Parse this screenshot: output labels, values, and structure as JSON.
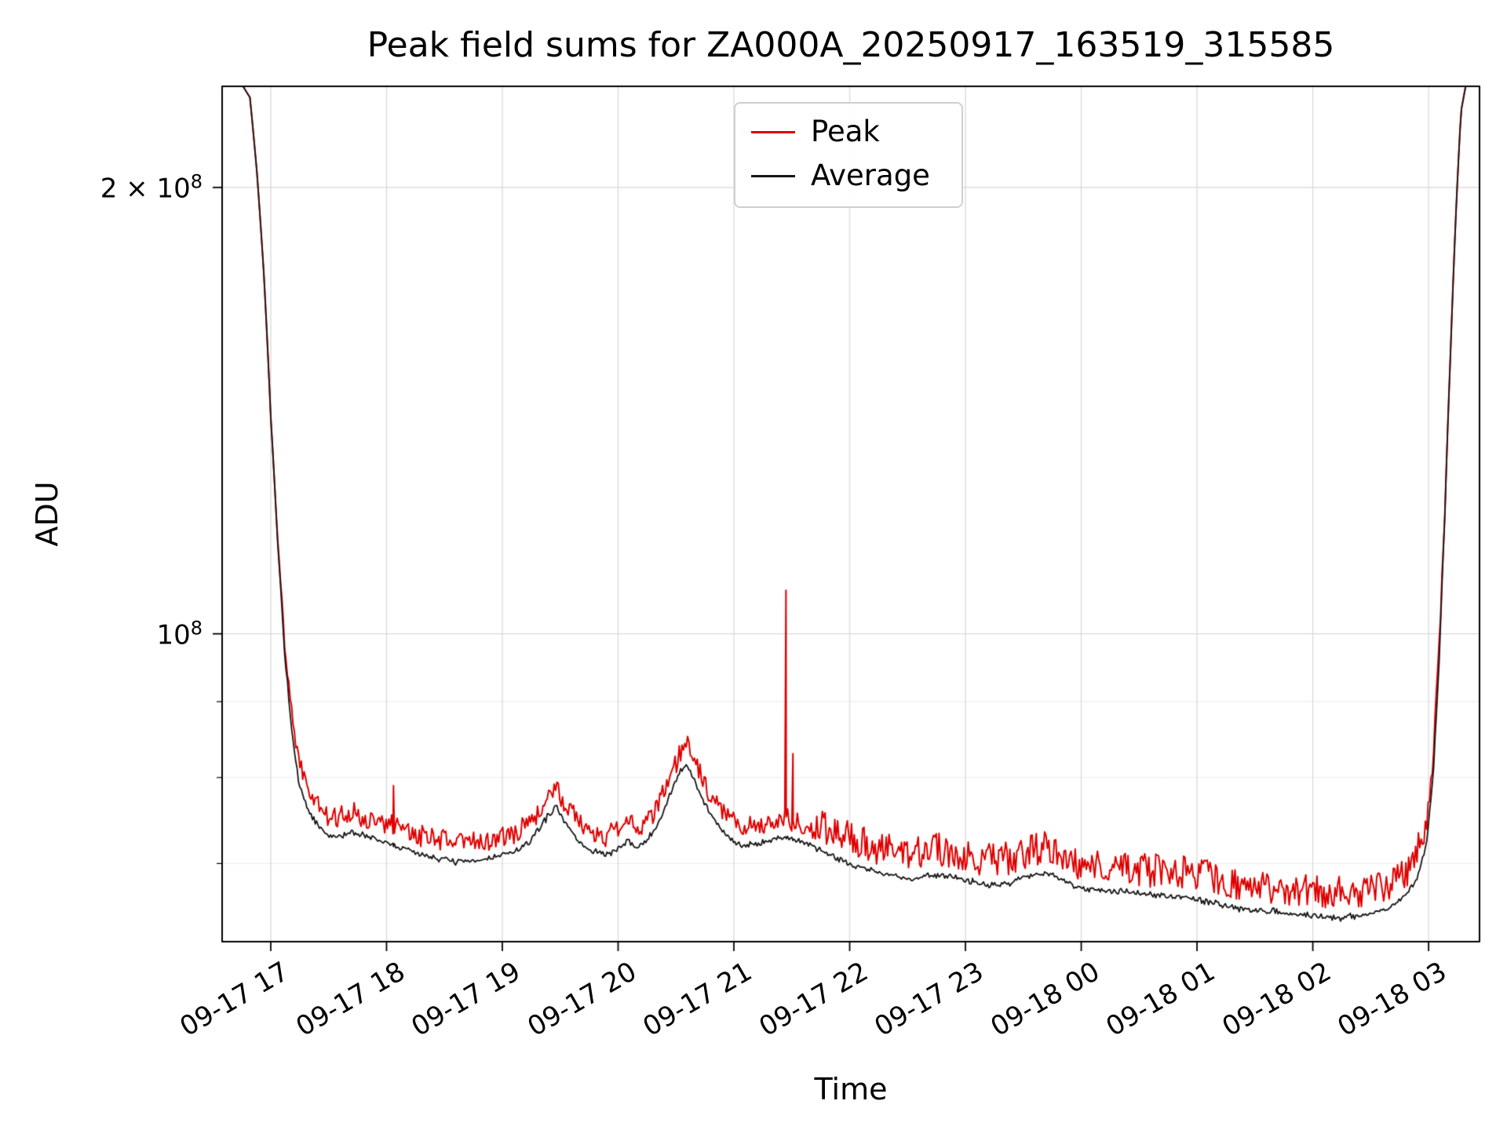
{
  "chart_data": {
    "type": "line",
    "title": "Peak field sums for ZA000A_20250917_163519_315585",
    "xlabel": "Time",
    "ylabel": "ADU",
    "yscale": "log",
    "grid": true,
    "legend_position": "upper center",
    "xlim": [
      16.58,
      27.44
    ],
    "ylim": [
      62000000,
      234000000
    ],
    "x_unit": "hours since 2025-09-17 00:00 (25=01:00 on 09-18)",
    "x_ticks": [
      {
        "value": 17,
        "label": "09-17 17"
      },
      {
        "value": 18,
        "label": "09-17 18"
      },
      {
        "value": 19,
        "label": "09-17 19"
      },
      {
        "value": 20,
        "label": "09-17 20"
      },
      {
        "value": 21,
        "label": "09-17 21"
      },
      {
        "value": 22,
        "label": "09-17 22"
      },
      {
        "value": 23,
        "label": "09-17 23"
      },
      {
        "value": 24,
        "label": "09-18 00"
      },
      {
        "value": 25,
        "label": "09-18 01"
      },
      {
        "value": 26,
        "label": "09-18 02"
      },
      {
        "value": 27,
        "label": "09-18 03"
      }
    ],
    "y_ticks": [
      {
        "value": 200000000,
        "mantissa": "2 × 10",
        "exp": "8"
      },
      {
        "value": 100000000,
        "mantissa": "10",
        "exp": "8"
      }
    ],
    "y_minor_gridlines": [
      70000000,
      80000000,
      90000000
    ],
    "series": [
      {
        "name": "Peak",
        "color": "#e00000",
        "line_width": 2,
        "derived_from": "Average",
        "rule": {
          "base_offset": 0.012,
          "noise_amp": 0.035,
          "noise_amp_late": 0.055,
          "late_range": [
            21.7,
            26.95
          ]
        },
        "spikes": [
          [
            18.06,
            79000000
          ],
          [
            21.45,
            107000000
          ],
          [
            21.51,
            83000000
          ],
          [
            23.06,
            71000000
          ],
          [
            25.33,
            69000000
          ]
        ]
      },
      {
        "name": "Average",
        "color": "#151515",
        "line_width": 1.8,
        "noise_amp": 0.006,
        "points": [
          [
            16.58,
            234000000
          ],
          [
            16.76,
            234000000
          ],
          [
            16.82,
            230000000
          ],
          [
            16.88,
            205000000
          ],
          [
            16.94,
            175000000
          ],
          [
            17.0,
            140000000
          ],
          [
            17.06,
            115000000
          ],
          [
            17.12,
            97000000
          ],
          [
            17.18,
            86000000
          ],
          [
            17.24,
            79500000
          ],
          [
            17.32,
            76000000
          ],
          [
            17.42,
            74000000
          ],
          [
            17.52,
            72800000
          ],
          [
            17.62,
            73200000
          ],
          [
            17.72,
            73500000
          ],
          [
            17.82,
            73000000
          ],
          [
            17.92,
            72600000
          ],
          [
            18.02,
            72200000
          ],
          [
            18.15,
            71600000
          ],
          [
            18.3,
            71000000
          ],
          [
            18.45,
            70600000
          ],
          [
            18.6,
            70200000
          ],
          [
            18.75,
            70200000
          ],
          [
            18.9,
            70600000
          ],
          [
            19.0,
            71000000
          ],
          [
            19.1,
            71200000
          ],
          [
            19.2,
            72000000
          ],
          [
            19.3,
            73500000
          ],
          [
            19.4,
            75500000
          ],
          [
            19.47,
            76500000
          ],
          [
            19.55,
            74500000
          ],
          [
            19.65,
            72500000
          ],
          [
            19.75,
            71500000
          ],
          [
            19.9,
            71000000
          ],
          [
            20.0,
            71500000
          ],
          [
            20.08,
            72500000
          ],
          [
            20.16,
            71800000
          ],
          [
            20.25,
            72500000
          ],
          [
            20.35,
            74500000
          ],
          [
            20.45,
            78000000
          ],
          [
            20.55,
            81000000
          ],
          [
            20.6,
            81500000
          ],
          [
            20.68,
            79000000
          ],
          [
            20.78,
            76000000
          ],
          [
            20.88,
            74000000
          ],
          [
            20.98,
            72500000
          ],
          [
            21.1,
            72000000
          ],
          [
            21.3,
            72500000
          ],
          [
            21.45,
            73000000
          ],
          [
            21.6,
            72200000
          ],
          [
            21.75,
            71500000
          ],
          [
            21.9,
            70500000
          ],
          [
            22.05,
            69800000
          ],
          [
            22.2,
            69200000
          ],
          [
            22.35,
            68800000
          ],
          [
            22.5,
            68300000
          ],
          [
            22.65,
            68600000
          ],
          [
            22.8,
            68800000
          ],
          [
            22.95,
            68400000
          ],
          [
            23.1,
            68000000
          ],
          [
            23.25,
            67600000
          ],
          [
            23.4,
            68000000
          ],
          [
            23.55,
            68800000
          ],
          [
            23.7,
            69000000
          ],
          [
            23.82,
            68400000
          ],
          [
            23.95,
            67600000
          ],
          [
            24.1,
            67200000
          ],
          [
            24.25,
            67000000
          ],
          [
            24.4,
            67000000
          ],
          [
            24.55,
            66700000
          ],
          [
            24.7,
            66600000
          ],
          [
            24.85,
            66500000
          ],
          [
            25.0,
            66200000
          ],
          [
            25.15,
            65800000
          ],
          [
            25.3,
            65400000
          ],
          [
            25.45,
            65200000
          ],
          [
            25.6,
            65100000
          ],
          [
            25.75,
            64800000
          ],
          [
            25.9,
            64700000
          ],
          [
            26.05,
            64500000
          ],
          [
            26.2,
            64300000
          ],
          [
            26.35,
            64500000
          ],
          [
            26.5,
            64800000
          ],
          [
            26.62,
            65200000
          ],
          [
            26.72,
            65800000
          ],
          [
            26.82,
            66800000
          ],
          [
            26.9,
            68500000
          ],
          [
            26.98,
            72000000
          ],
          [
            27.04,
            80000000
          ],
          [
            27.09,
            95000000
          ],
          [
            27.14,
            120000000
          ],
          [
            27.19,
            155000000
          ],
          [
            27.24,
            195000000
          ],
          [
            27.28,
            225000000
          ],
          [
            27.32,
            234000000
          ],
          [
            27.44,
            234000000
          ]
        ]
      }
    ],
    "colors": {
      "grid_major": "#d9d9d9",
      "grid_minor": "#ececec",
      "spine": "#000000",
      "background": "#ffffff"
    }
  }
}
